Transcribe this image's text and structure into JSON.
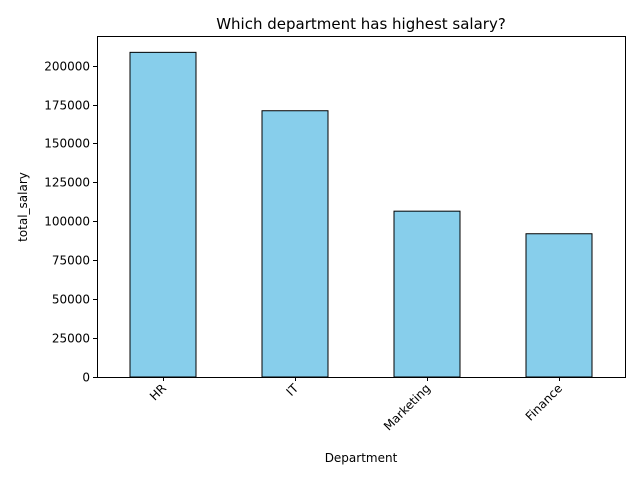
{
  "chart_data": {
    "type": "bar",
    "title": "Which department has highest salary?",
    "xlabel": "Department",
    "ylabel": "total_salary",
    "categories": [
      "HR",
      "IT",
      "Marketing",
      "Finance"
    ],
    "values": [
      208500,
      171000,
      106500,
      92000
    ],
    "ylim": [
      0,
      219000
    ],
    "yticks": [
      0,
      25000,
      50000,
      75000,
      100000,
      125000,
      150000,
      175000,
      200000
    ],
    "bar_color": "#87ceeb",
    "bar_edge_color": "#000000",
    "grid": false,
    "legend": "none"
  }
}
